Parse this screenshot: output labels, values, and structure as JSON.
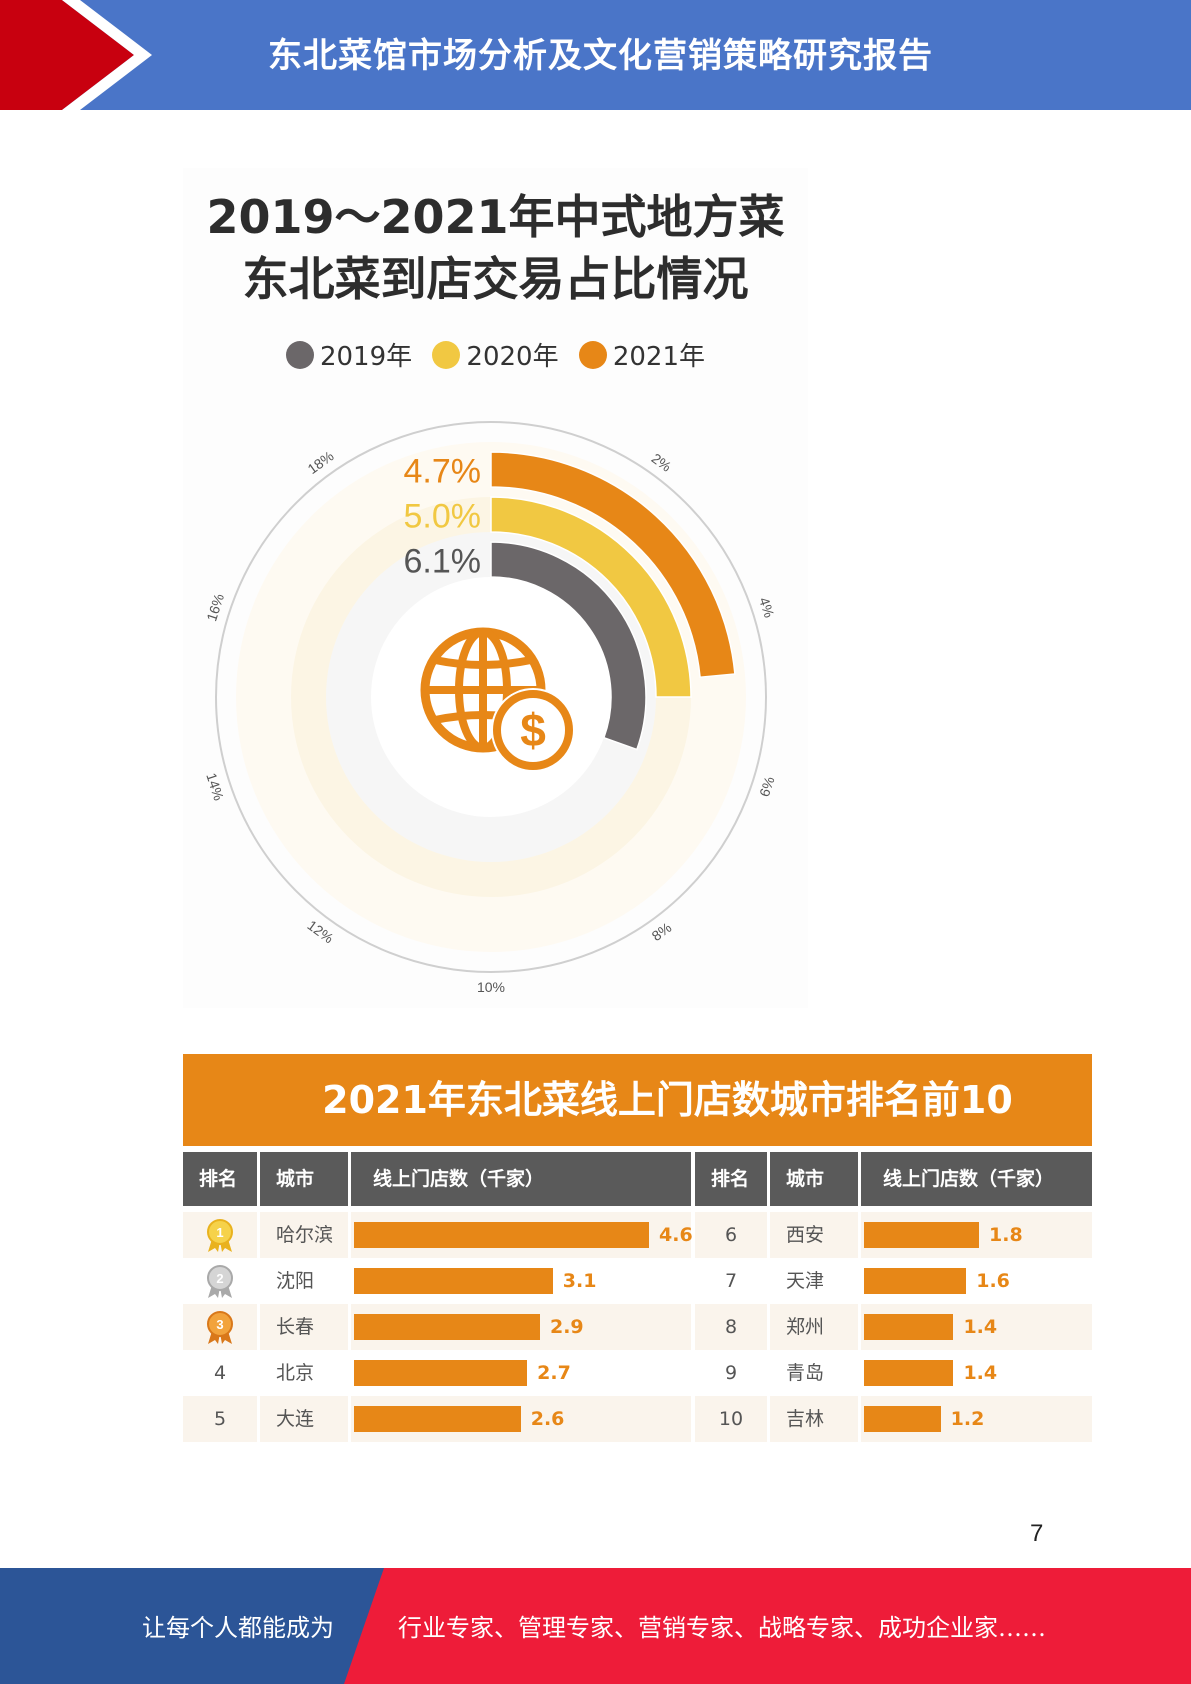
{
  "header": {
    "title": "东北菜馆市场分析及文化营销策略研究报告"
  },
  "chart_data": [
    {
      "type": "radial-bar",
      "title_lines": [
        "2019～2021年中式地方菜",
        "东北菜到店交易占比情况"
      ],
      "series": [
        {
          "name": "2019年",
          "value": 6.1,
          "label": "6.1%",
          "color": "#6b6769"
        },
        {
          "name": "2020年",
          "value": 5.0,
          "label": "5.0%",
          "color": "#f1c842"
        },
        {
          "name": "2021年",
          "value": 4.7,
          "label": "4.7%",
          "color": "#e78717"
        }
      ],
      "scale_labels": [
        "2%",
        "4%",
        "6%",
        "8%",
        "10%",
        "12%",
        "14%",
        "16%",
        "18%"
      ],
      "scale_max": 20,
      "icon": "globe-dollar-icon"
    },
    {
      "type": "table",
      "title": "2021年东北菜线上门店数城市排名前10",
      "columns": [
        "排名",
        "城市",
        "线上门店数（千家）",
        "排名",
        "城市",
        "线上门店数（千家）"
      ],
      "max_value": 4.6,
      "left": [
        {
          "rank": "1",
          "medal": "gold",
          "city": "哈尔滨",
          "value": 4.6,
          "label": "4.6"
        },
        {
          "rank": "2",
          "medal": "silver",
          "city": "沈阳",
          "value": 3.1,
          "label": "3.1"
        },
        {
          "rank": "3",
          "medal": "bronze",
          "city": "长春",
          "value": 2.9,
          "label": "2.9"
        },
        {
          "rank": "4",
          "medal": "",
          "city": "北京",
          "value": 2.7,
          "label": "2.7"
        },
        {
          "rank": "5",
          "medal": "",
          "city": "大连",
          "value": 2.6,
          "label": "2.6"
        }
      ],
      "right": [
        {
          "rank": "6",
          "city": "西安",
          "value": 1.8,
          "label": "1.8"
        },
        {
          "rank": "7",
          "city": "天津",
          "value": 1.6,
          "label": "1.6"
        },
        {
          "rank": "8",
          "city": "郑州",
          "value": 1.4,
          "label": "1.4"
        },
        {
          "rank": "9",
          "city": "青岛",
          "value": 1.4,
          "label": "1.4"
        },
        {
          "rank": "10",
          "city": "吉林",
          "value": 1.2,
          "label": "1.2"
        }
      ]
    }
  ],
  "page_number": "7",
  "footer": {
    "left_text": "让每个人都能成为",
    "right_text": "行业专家、管理专家、营销专家、战略专家、成功企业家……"
  },
  "colors": {
    "header_blue": "#4a75c8",
    "header_red": "#c8000f",
    "footer_blue": "#2c5597",
    "footer_red": "#ee1c39",
    "accent_orange": "#e78717"
  }
}
